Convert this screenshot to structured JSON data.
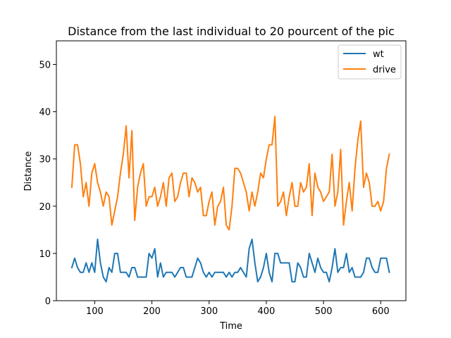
{
  "chart_data": {
    "type": "line",
    "title": "Distance from the last individual to 20 pourcent of the pic",
    "xlabel": "Time",
    "ylabel": "Distance",
    "xlim": [
      33,
      644
    ],
    "ylim": [
      0,
      55
    ],
    "xticks": [
      100,
      200,
      300,
      400,
      500,
      600
    ],
    "yticks": [
      0,
      10,
      20,
      30,
      40,
      50
    ],
    "grid": false,
    "legend_position": "top-right",
    "x": [
      60,
      65,
      70,
      75,
      80,
      85,
      90,
      95,
      100,
      105,
      110,
      115,
      120,
      125,
      130,
      135,
      140,
      145,
      150,
      155,
      160,
      165,
      170,
      175,
      180,
      185,
      190,
      195,
      200,
      205,
      210,
      215,
      220,
      225,
      230,
      235,
      240,
      245,
      250,
      255,
      260,
      265,
      270,
      275,
      280,
      285,
      290,
      295,
      300,
      305,
      310,
      315,
      320,
      325,
      330,
      335,
      340,
      345,
      350,
      355,
      360,
      365,
      370,
      375,
      380,
      385,
      390,
      395,
      400,
      405,
      410,
      415,
      420,
      425,
      430,
      435,
      440,
      445,
      450,
      455,
      460,
      465,
      470,
      475,
      480,
      485,
      490,
      495,
      500,
      505,
      510,
      515,
      520,
      525,
      530,
      535,
      540,
      545,
      550,
      555,
      560,
      565,
      570,
      575,
      580,
      585,
      590,
      595,
      600,
      605,
      610,
      615
    ],
    "series": [
      {
        "name": "wt",
        "color": "#1f77b4",
        "values": [
          7,
          9,
          7,
          6,
          6,
          8,
          6,
          8,
          6,
          13,
          8,
          5,
          4,
          7,
          6,
          10,
          10,
          6,
          6,
          6,
          5,
          7,
          7,
          5,
          5,
          5,
          5,
          10,
          9,
          11,
          5,
          8,
          5,
          6,
          6,
          6,
          5,
          6,
          7,
          7,
          5,
          5,
          5,
          7,
          9,
          8,
          6,
          5,
          6,
          5,
          6,
          6,
          6,
          6,
          5,
          6,
          5,
          6,
          6,
          7,
          6,
          5,
          11,
          13,
          8,
          4,
          5,
          7,
          10,
          6,
          4,
          10,
          10,
          8,
          8,
          8,
          8,
          4,
          4,
          8,
          7,
          5,
          5,
          10,
          8,
          6,
          9,
          7,
          6,
          6,
          4,
          7,
          11,
          6,
          7,
          7,
          10,
          6,
          7,
          5,
          5,
          5,
          6,
          9,
          9,
          7,
          6,
          6,
          9,
          9,
          9,
          6
        ]
      },
      {
        "name": "drive",
        "color": "#ff7f0e",
        "values": [
          24,
          33,
          33,
          29,
          22,
          25,
          20,
          27,
          29,
          25,
          23,
          20,
          23,
          22,
          16,
          19,
          22,
          27,
          31,
          37,
          26,
          36,
          17,
          24,
          27,
          29,
          20,
          22,
          22,
          24,
          20,
          22,
          25,
          20,
          26,
          27,
          21,
          22,
          25,
          27,
          27,
          22,
          26,
          25,
          23,
          24,
          18,
          18,
          21,
          23,
          16,
          20,
          21,
          24,
          16,
          15,
          20,
          28,
          28,
          27,
          25,
          23,
          19,
          23,
          20,
          23,
          27,
          26,
          30,
          33,
          33,
          39,
          20,
          21,
          23,
          18,
          22,
          25,
          20,
          20,
          25,
          23,
          24,
          29,
          18,
          27,
          24,
          23,
          21,
          22,
          23,
          31,
          20,
          23,
          32,
          16,
          21,
          25,
          19,
          28,
          34,
          38,
          24,
          27,
          25,
          20,
          20,
          21,
          19,
          21,
          28,
          31
        ]
      }
    ]
  }
}
